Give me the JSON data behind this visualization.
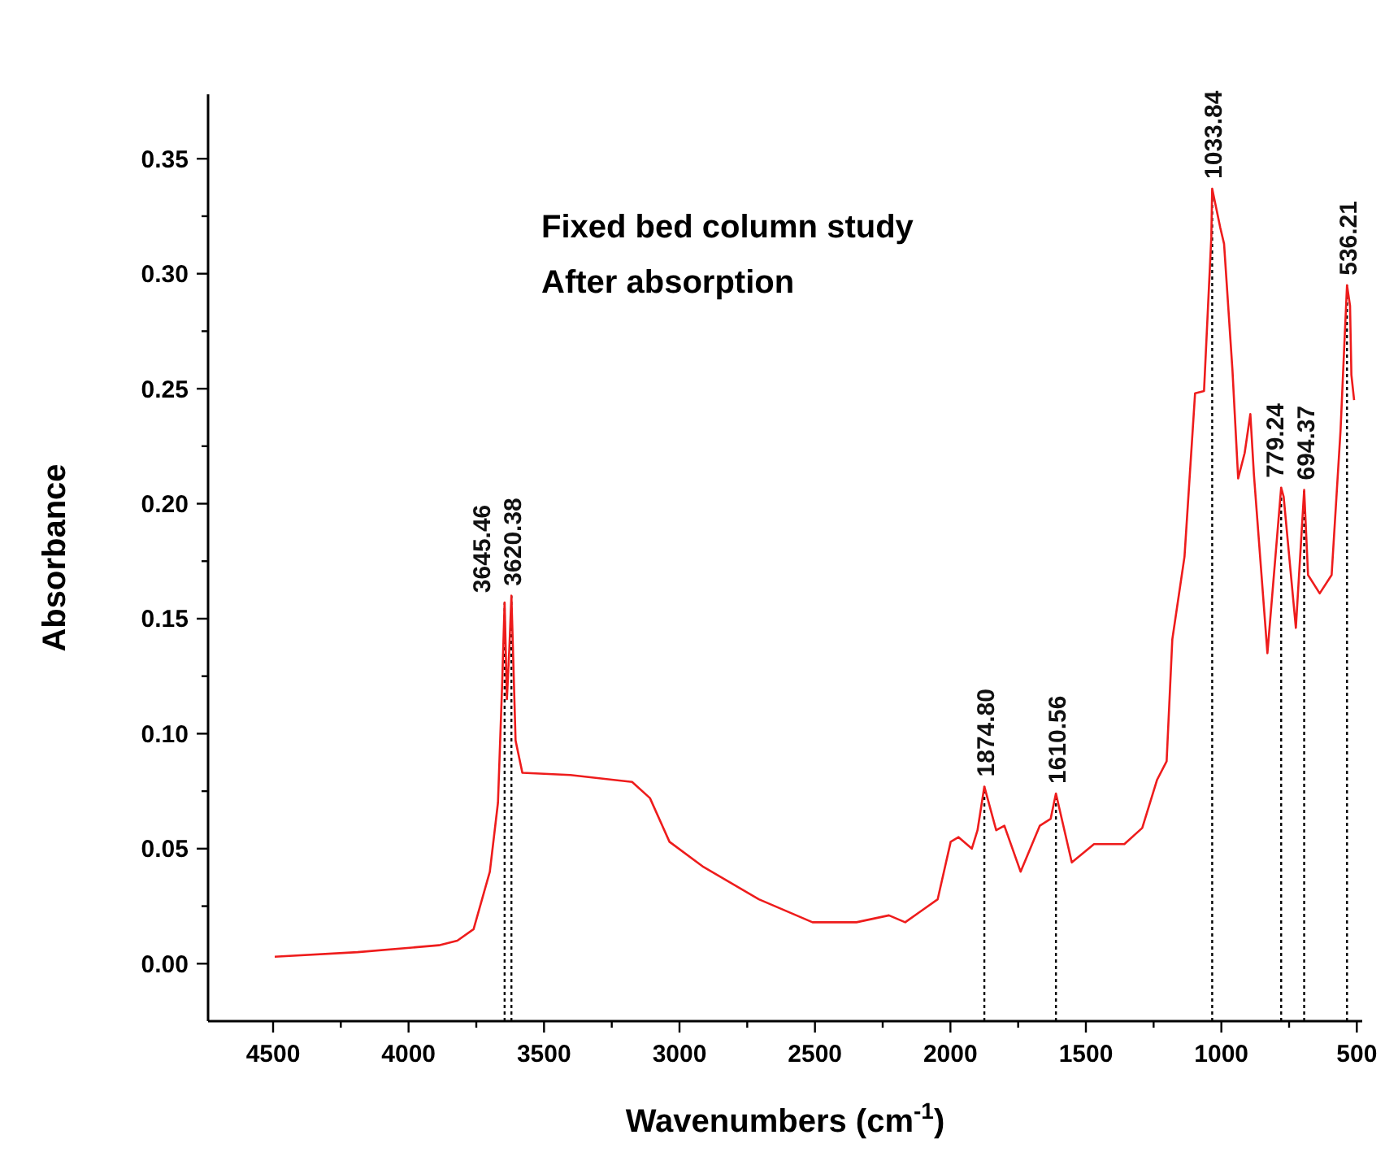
{
  "chart_data": {
    "type": "line",
    "xlabel": "Wavenumbers (cm$^{-1}$)",
    "ylabel": "Absorbance",
    "annotations": [
      "Fixed bed column study",
      "After absorption"
    ],
    "xlim": [
      4740,
      480
    ],
    "ylim": [
      -0.025,
      0.378
    ],
    "xticks": [
      4500,
      {
        "value": 4250,
        "label": null
      },
      4000,
      {
        "value": 3750,
        "label": null
      },
      3500,
      {
        "value": 3250,
        "label": null
      },
      3000,
      {
        "value": 2750,
        "label": null
      },
      2500,
      {
        "value": 2250,
        "label": null
      },
      2000,
      {
        "value": 1750,
        "label": null
      },
      1500,
      {
        "value": 1250,
        "label": null
      },
      1000,
      {
        "value": 750,
        "label": null
      },
      500
    ],
    "yticks": [
      {
        "value": 0,
        "label": "0.00"
      },
      {
        "value": 0.025,
        "label": null
      },
      {
        "value": 0.05,
        "label": "0.05"
      },
      {
        "value": 0.075,
        "label": null
      },
      {
        "value": 0.1,
        "label": "0.10"
      },
      {
        "value": 0.125,
        "label": null
      },
      {
        "value": 0.15,
        "label": "0.15"
      },
      {
        "value": 0.175,
        "label": null
      },
      {
        "value": 0.2,
        "label": "0.20"
      },
      {
        "value": 0.225,
        "label": null
      },
      {
        "value": 0.25,
        "label": "0.25"
      },
      {
        "value": 0.275,
        "label": null
      },
      {
        "value": 0.3,
        "label": "0.30"
      },
      {
        "value": 0.325,
        "label": null
      },
      {
        "value": 0.35,
        "label": "0.35"
      }
    ],
    "grid": false,
    "marker": "none",
    "line_style": "solid",
    "series": [
      {
        "color": "#ee1c1c",
        "x": [
          4494,
          4188,
          3888,
          3820,
          3760,
          3700,
          3670,
          3655,
          3645.46,
          3637,
          3628,
          3620.38,
          3605,
          3580,
          3403,
          3175,
          3109,
          3037,
          2911,
          2707,
          2509,
          2347,
          2227,
          2167,
          2107,
          2047,
          1999,
          1970,
          1921,
          1900,
          1874.8,
          1831,
          1801,
          1741,
          1670,
          1630,
          1610.56,
          1552,
          1470,
          1358,
          1292,
          1237,
          1202,
          1181,
          1136,
          1097,
          1064,
          1037,
          1033.84,
          1004,
          990,
          959,
          938,
          914,
          893,
          880,
          830,
          779.24,
          770,
          725,
          694.37,
          680,
          637,
          593,
          560,
          548,
          536.21,
          525,
          520,
          510
        ],
        "values": [
          0.003,
          0.005,
          0.008,
          0.01,
          0.015,
          0.04,
          0.07,
          0.12,
          0.157,
          0.115,
          0.137,
          0.16,
          0.097,
          0.083,
          0.082,
          0.079,
          0.072,
          0.053,
          0.042,
          0.028,
          0.018,
          0.018,
          0.021,
          0.018,
          0.023,
          0.028,
          0.053,
          0.055,
          0.05,
          0.058,
          0.077,
          0.058,
          0.06,
          0.04,
          0.06,
          0.063,
          0.074,
          0.044,
          0.052,
          0.052,
          0.059,
          0.08,
          0.088,
          0.141,
          0.177,
          0.248,
          0.249,
          0.316,
          0.337,
          0.32,
          0.313,
          0.258,
          0.211,
          0.222,
          0.239,
          0.213,
          0.135,
          0.207,
          0.203,
          0.146,
          0.206,
          0.169,
          0.161,
          0.169,
          0.232,
          0.264,
          0.295,
          0.286,
          0.256,
          0.245
        ]
      }
    ],
    "ref_lines": [
      {
        "axis": "x",
        "value": 3645.46,
        "label": "3645.46",
        "color": "#000000",
        "line_style": "dotted"
      },
      {
        "axis": "x",
        "value": 3620.38,
        "label": "3620.38",
        "color": "#000000",
        "line_style": "dotted"
      },
      {
        "axis": "x",
        "value": 1874.8,
        "label": "1874.80",
        "color": "#000000",
        "line_style": "dotted"
      },
      {
        "axis": "x",
        "value": 1610.56,
        "label": "1610.56",
        "color": "#000000",
        "line_style": "dotted"
      },
      {
        "axis": "x",
        "value": 1033.84,
        "label": "1033.84",
        "color": "#000000",
        "line_style": "dotted"
      },
      {
        "axis": "x",
        "value": 779.24,
        "label": "779.24",
        "color": "#000000",
        "line_style": "dotted"
      },
      {
        "axis": "x",
        "value": 694.37,
        "label": "694.37",
        "color": "#000000",
        "line_style": "dotted"
      },
      {
        "axis": "x",
        "value": 536.21,
        "label": "536.21",
        "color": "#000000",
        "line_style": "dotted"
      }
    ]
  }
}
